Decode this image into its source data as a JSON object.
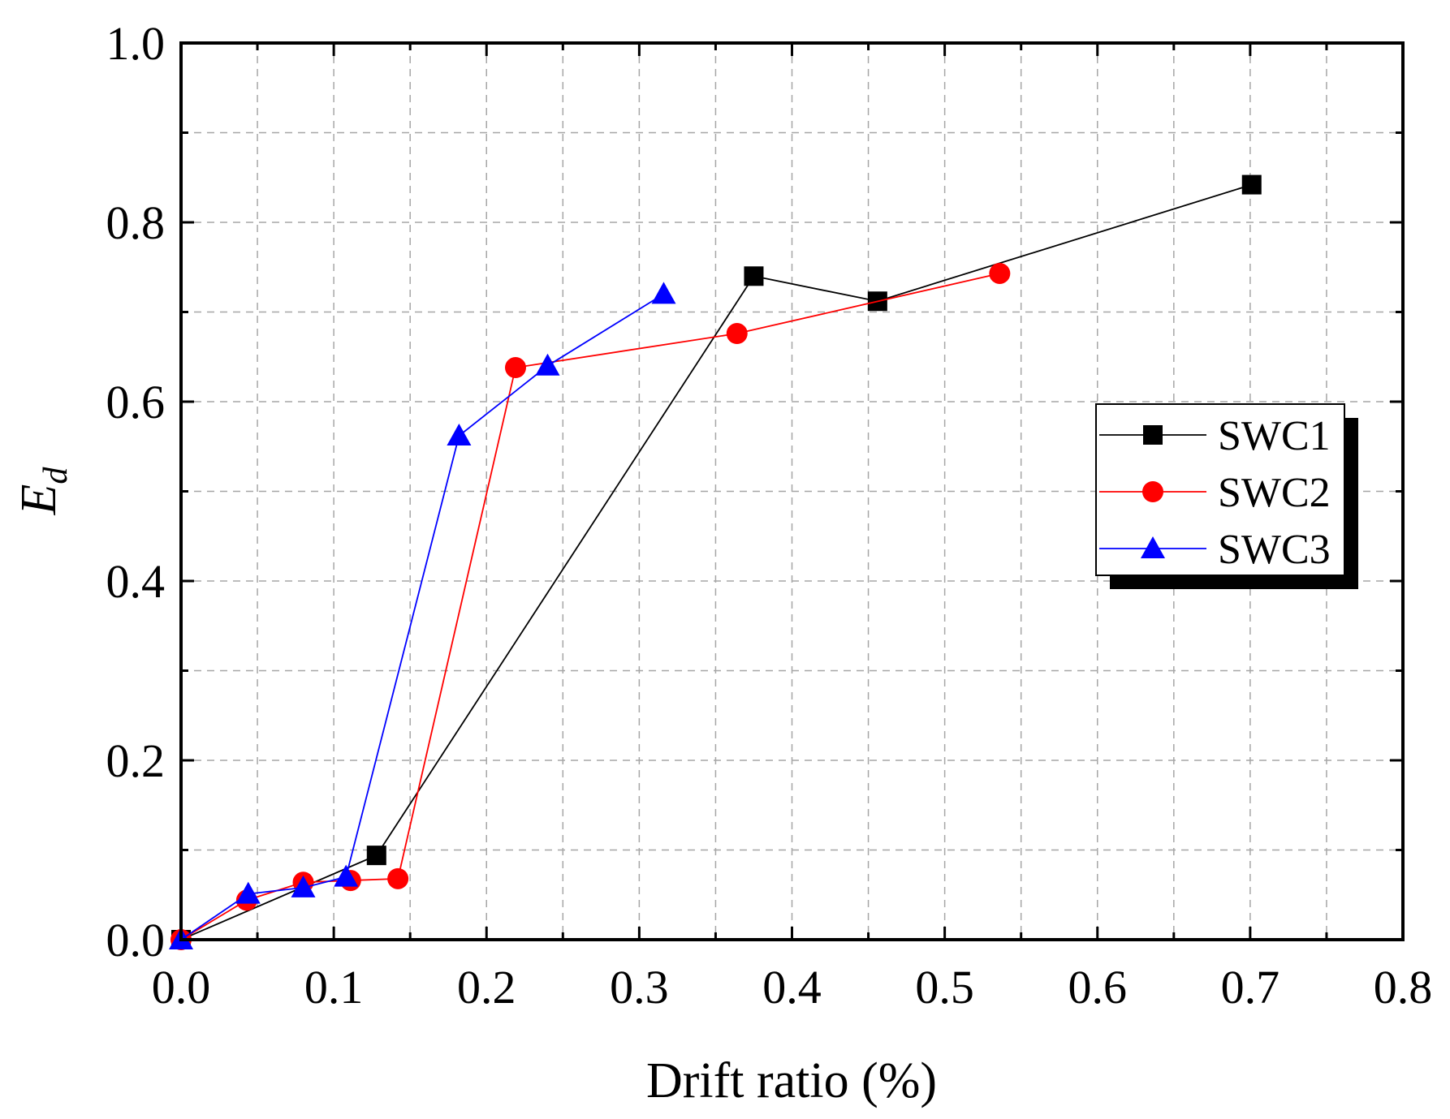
{
  "chart_data": {
    "type": "line",
    "title": "",
    "xlabel": "Drift ratio (%)",
    "ylabel_main": "E",
    "ylabel_sub": "d",
    "xlim": [
      0.0,
      0.8
    ],
    "ylim": [
      0.0,
      1.0
    ],
    "xticks": [
      0.0,
      0.1,
      0.2,
      0.3,
      0.4,
      0.5,
      0.6,
      0.7,
      0.8
    ],
    "yticks": [
      0.0,
      0.2,
      0.4,
      0.6,
      0.8,
      1.0
    ],
    "xtick_labels": [
      "0.0",
      "0.1",
      "0.2",
      "0.3",
      "0.4",
      "0.5",
      "0.6",
      "0.7",
      "0.8"
    ],
    "ytick_labels": [
      "0.0",
      "0.2",
      "0.4",
      "0.6",
      "0.8",
      "1.0"
    ],
    "x_minor_step": 0.05,
    "y_minor_step": 0.1,
    "grid": true,
    "legend_position": "right",
    "series": [
      {
        "name": "SWC1",
        "marker": "square",
        "color": "#000000",
        "x": [
          0.0,
          0.128,
          0.375,
          0.456,
          0.701
        ],
        "y": [
          0.0,
          0.094,
          0.74,
          0.712,
          0.842
        ]
      },
      {
        "name": "SWC2",
        "marker": "circle",
        "color": "#ff0000",
        "x": [
          0.0,
          0.043,
          0.08,
          0.111,
          0.142,
          0.219,
          0.364,
          0.536
        ],
        "y": [
          0.0,
          0.044,
          0.064,
          0.066,
          0.068,
          0.638,
          0.676,
          0.743
        ]
      },
      {
        "name": "SWC3",
        "marker": "triangle",
        "color": "#0000ff",
        "x": [
          0.0,
          0.044,
          0.08,
          0.108,
          0.182,
          0.24,
          0.316
        ],
        "y": [
          0.0,
          0.051,
          0.058,
          0.07,
          0.562,
          0.64,
          0.72
        ]
      }
    ]
  }
}
